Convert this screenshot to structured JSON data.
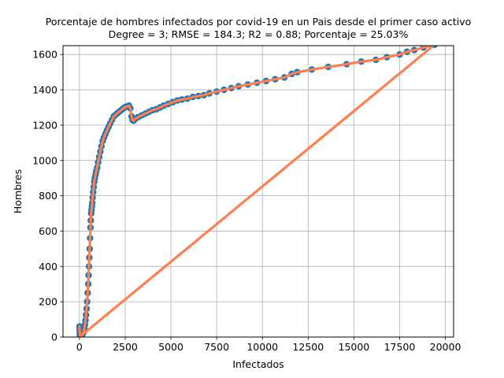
{
  "chart_data": {
    "type": "scatter",
    "title_line1": "Porcentaje de hombres infectados por covid-19 en un Pais desde el primer caso activo",
    "title_line2": "Degree = 3; RMSE = 184.3; R2 = 0.88; Porcentaje = 25.03%",
    "xlabel": "Infectados",
    "ylabel": "Hombres",
    "xlim": [
      -900,
      20450
    ],
    "ylim": [
      0,
      1650
    ],
    "x_ticks": [
      0,
      2500,
      5000,
      7500,
      10000,
      12500,
      15000,
      17500,
      20000
    ],
    "x_tick_labels": [
      "0",
      "2500",
      "5000",
      "7500",
      "10000",
      "12500",
      "15000",
      "17500",
      "20000"
    ],
    "y_ticks": [
      0,
      200,
      400,
      600,
      800,
      1000,
      1200,
      1400,
      1600
    ],
    "y_tick_labels": [
      "0",
      "200",
      "400",
      "600",
      "800",
      "1000",
      "1200",
      "1400",
      "1600"
    ],
    "grid": true,
    "legend": false,
    "colors": {
      "scatter": "#1f77b4",
      "fit": "#ff7f50",
      "grid": "#b0b0b0"
    },
    "series": [
      {
        "kind": "scatter",
        "x": [
          0,
          10,
          20,
          30,
          40,
          50,
          60,
          80,
          100,
          120,
          150,
          180,
          210,
          240,
          270,
          300,
          330,
          360,
          390,
          420,
          450,
          480,
          500,
          520,
          540,
          560,
          580,
          600,
          620,
          640,
          660,
          680,
          700,
          720,
          750,
          780,
          810,
          840,
          880,
          920,
          970,
          1020,
          1080,
          1140,
          1200,
          1270,
          1340,
          1420,
          1500,
          1590,
          1680,
          1780,
          1880,
          1990,
          2100,
          2220,
          2340,
          2460,
          2580,
          2700,
          2780,
          2850,
          2900,
          2950,
          3050,
          3200,
          3400,
          3600,
          3800,
          4000,
          4200,
          4400,
          4600,
          4850,
          5100,
          5350,
          5600,
          5900,
          6200,
          6500,
          6800,
          7100,
          7500,
          7900,
          8300,
          8700,
          9200,
          9700,
          10200,
          10700,
          11200,
          11600,
          11900,
          12700,
          13600,
          14600,
          15400,
          16200,
          16800,
          17500,
          17900,
          18300,
          18800,
          19400
        ],
        "y": [
          60,
          40,
          20,
          10,
          5,
          3,
          0,
          2,
          5,
          8,
          12,
          18,
          25,
          35,
          50,
          70,
          95,
          125,
          160,
          200,
          250,
          300,
          350,
          400,
          450,
          500,
          560,
          620,
          660,
          700,
          720,
          740,
          760,
          790,
          820,
          850,
          880,
          900,
          920,
          940,
          960,
          990,
          1020,
          1050,
          1080,
          1110,
          1130,
          1150,
          1170,
          1190,
          1210,
          1230,
          1250,
          1260,
          1270,
          1280,
          1290,
          1300,
          1305,
          1310,
          1295,
          1250,
          1230,
          1225,
          1235,
          1245,
          1255,
          1265,
          1275,
          1285,
          1290,
          1300,
          1310,
          1320,
          1330,
          1340,
          1345,
          1350,
          1360,
          1365,
          1370,
          1380,
          1390,
          1400,
          1410,
          1420,
          1430,
          1440,
          1450,
          1460,
          1470,
          1490,
          1500,
          1515,
          1530,
          1545,
          1560,
          1570,
          1585,
          1600,
          1615,
          1625,
          1640,
          1655
        ]
      },
      {
        "kind": "fit_line",
        "x": [
          0,
          10,
          20,
          30,
          40,
          50,
          60,
          80,
          100,
          120,
          150,
          180,
          210,
          240,
          270,
          300,
          330,
          360,
          390,
          420,
          450,
          480,
          500,
          520,
          540,
          560,
          580,
          600,
          620,
          640,
          660,
          680,
          700,
          720,
          750,
          780,
          810,
          840,
          880,
          920,
          970,
          1020,
          1080,
          1140,
          1200,
          1270,
          1340,
          1420,
          1500,
          1590,
          1680,
          1780,
          1880,
          1990,
          2100,
          2220,
          2340,
          2460,
          2580,
          2700,
          2780,
          2850,
          2900,
          2950,
          3050,
          3200,
          3400,
          3600,
          3800,
          4000,
          4200,
          4400,
          4600,
          4850,
          5100,
          5350,
          5600,
          5900,
          6200,
          6500,
          6800,
          7100,
          7500,
          7900,
          8300,
          8700,
          9200,
          9700,
          10200,
          10700,
          11200,
          11600,
          11900,
          12700,
          13600,
          14600,
          15400,
          16200,
          16800,
          17500,
          17900,
          18300,
          18800,
          19400,
          0
        ],
        "y": [
          60,
          40,
          20,
          10,
          5,
          3,
          0,
          2,
          5,
          8,
          12,
          18,
          25,
          35,
          50,
          70,
          95,
          125,
          160,
          200,
          250,
          300,
          350,
          400,
          450,
          500,
          560,
          620,
          660,
          700,
          720,
          740,
          760,
          790,
          820,
          850,
          880,
          900,
          920,
          940,
          960,
          990,
          1020,
          1050,
          1080,
          1110,
          1130,
          1150,
          1170,
          1190,
          1210,
          1230,
          1250,
          1260,
          1270,
          1280,
          1290,
          1300,
          1305,
          1310,
          1295,
          1250,
          1230,
          1225,
          1235,
          1245,
          1255,
          1265,
          1275,
          1285,
          1290,
          1300,
          1310,
          1320,
          1330,
          1340,
          1345,
          1350,
          1360,
          1365,
          1370,
          1380,
          1390,
          1400,
          1410,
          1420,
          1430,
          1440,
          1450,
          1460,
          1470,
          1490,
          1500,
          1515,
          1530,
          1545,
          1560,
          1570,
          1585,
          1600,
          1615,
          1625,
          1640,
          1655,
          0
        ]
      }
    ]
  }
}
